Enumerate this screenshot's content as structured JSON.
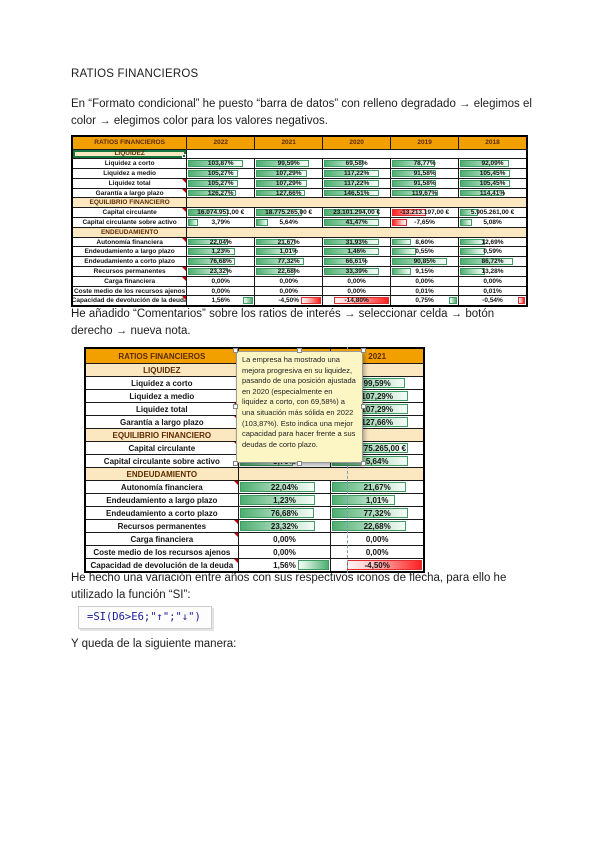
{
  "document": {
    "title": "RATIOS FINANCIEROS",
    "paragraphs": {
      "p1": "En “Formato condicional” he puesto “barra de datos” con relleno degradado → elegimos el color → elegimos color para los valores negativos.",
      "p2": "He añadido “Comentarios” sobre los ratios de interés → seleccionar celda → botón derecho → nueva nota.",
      "p3": "He hecho una variación entre años con sus respectivos iconos de flecha, para ello he utilizado la función “SI”:",
      "p4": "Y queda de la siguiente manera:"
    },
    "formula": "=SI(D6>E6;\"↑\";\"↓\")"
  },
  "colors": {
    "header_bg": "#F2A000",
    "section_bg": "#FBE7C0",
    "bar_green": "#4FAE71",
    "bar_red": "#FF2020",
    "marker_red": "#C00000",
    "note_bg": "#FCF6C5",
    "selection_green": "#17753F",
    "formula_text": "#19199B"
  },
  "ratios_table": {
    "header": [
      "RATIOS FINANCIEROS",
      "2022",
      "2021",
      "2020",
      "2019",
      "2018"
    ],
    "rows": [
      {
        "type": "section",
        "label": "LIQUIDEZ",
        "fullband": false,
        "selected": true
      },
      {
        "type": "data",
        "label": "Liquidez a corto",
        "values": [
          "103,87%",
          "99,59%",
          "69,58%",
          "78,77%",
          "92,09%"
        ]
      },
      {
        "type": "data",
        "label": "Liquidez a medio",
        "values": [
          "105,27%",
          "107,29%",
          "117,22%",
          "91,58%",
          "105,45%"
        ]
      },
      {
        "type": "data",
        "label": "Liquidez total",
        "marker": true,
        "values": [
          "105,27%",
          "107,29%",
          "117,22%",
          "91,58%",
          "105,45%"
        ]
      },
      {
        "type": "data",
        "label": "Garantía a largo plazo",
        "marker": true,
        "values": [
          "126,27%",
          "127,66%",
          "146,51%",
          "119,67%",
          "114,41%"
        ]
      },
      {
        "type": "section",
        "label": "EQUILIBRIO FINANCIERO",
        "fullband": true
      },
      {
        "type": "data",
        "label": "Capital circulante",
        "marker": true,
        "values": [
          "16.074.951,00 €",
          "18.775.265,00 €",
          "23.101.294,00 €",
          "-13.213.197,00 €",
          "5.905.261,00 €"
        ]
      },
      {
        "type": "data",
        "label": "Capital circulante sobre activo",
        "values": [
          "3,79%",
          "5,64%",
          "41,47%",
          "-7,65%",
          "5,08%"
        ]
      },
      {
        "type": "section",
        "label": "ENDEUDAMIENTO",
        "fullband": true
      },
      {
        "type": "data",
        "label": "Autonomía financiera",
        "marker": true,
        "values": [
          "22,04%",
          "21,67%",
          "31,93%",
          "8,60%",
          "12,69%"
        ]
      },
      {
        "type": "data",
        "label": "Endeudamiento a largo plazo",
        "values": [
          "1,23%",
          "1,01%",
          "1,46%",
          "0,55%",
          "0,59%"
        ]
      },
      {
        "type": "data",
        "label": "Endeudamiento a corto plazo",
        "values": [
          "76,68%",
          "77,32%",
          "66,61%",
          "90,85%",
          "86,72%"
        ]
      },
      {
        "type": "data",
        "label": "Recursos permanentes",
        "marker": true,
        "values": [
          "23,32%",
          "22,68%",
          "33,39%",
          "9,15%",
          "13,28%"
        ]
      },
      {
        "type": "data",
        "label": "Carga financiera",
        "marker": true,
        "values": [
          "0,00%",
          "0,00%",
          "0,00%",
          "0,00%",
          "0,00%"
        ]
      },
      {
        "type": "data",
        "label": "Coste medio de los recursos ajenos",
        "values": [
          "0,00%",
          "0,00%",
          "0,00%",
          "0,01%",
          "0,01%"
        ]
      },
      {
        "type": "data",
        "label": "Capacidad de devolución de la deuda",
        "marker": true,
        "rightBars": true,
        "values": [
          "1,56%",
          "-4,50%",
          "-14,80%",
          "0,75%",
          "-0,54%"
        ]
      }
    ]
  },
  "comment_table": {
    "header": [
      "RATIOS FINANCIEROS",
      "2022",
      "2021"
    ],
    "note_text": "La empresa ha mostrado una mejora progresiva en su liquidez, pasando de una posición ajustada en 2020 (especialmente en liquidez a corto, con 69,58%) a una situación más sólida en 2022 (103,87%). Esto indica una mejor capacidad para hacer frente a sus deudas de corto plazo."
  }
}
